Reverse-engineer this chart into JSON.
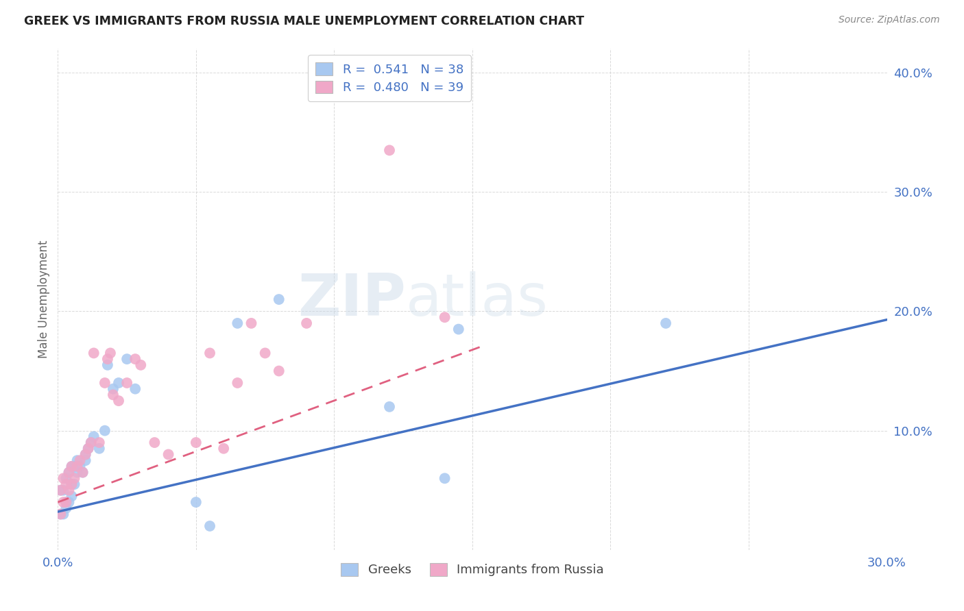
{
  "title": "GREEK VS IMMIGRANTS FROM RUSSIA MALE UNEMPLOYMENT CORRELATION CHART",
  "source": "Source: ZipAtlas.com",
  "ylabel": "Male Unemployment",
  "xlim": [
    0.0,
    0.3
  ],
  "ylim": [
    0.0,
    0.42
  ],
  "background_color": "#ffffff",
  "grid_color": "#d0d0d0",
  "watermark": "ZIPatlas",
  "legend_R_greek": "0.541",
  "legend_N_greek": "38",
  "legend_R_russia": "0.480",
  "legend_N_russia": "39",
  "greek_color": "#a8c8f0",
  "russia_color": "#f0a8c8",
  "greek_line_color": "#4472c4",
  "russia_line_color": "#e06080",
  "axis_label_color": "#4472c4",
  "legend_text_color": "#4472c4",
  "greek_x": [
    0.001,
    0.001,
    0.002,
    0.002,
    0.003,
    0.003,
    0.003,
    0.004,
    0.004,
    0.005,
    0.005,
    0.005,
    0.006,
    0.006,
    0.007,
    0.007,
    0.008,
    0.009,
    0.01,
    0.01,
    0.011,
    0.012,
    0.013,
    0.015,
    0.017,
    0.018,
    0.02,
    0.022,
    0.025,
    0.028,
    0.05,
    0.055,
    0.065,
    0.08,
    0.12,
    0.14,
    0.145,
    0.22
  ],
  "greek_y": [
    0.03,
    0.05,
    0.03,
    0.05,
    0.035,
    0.04,
    0.06,
    0.04,
    0.065,
    0.045,
    0.055,
    0.07,
    0.055,
    0.07,
    0.065,
    0.075,
    0.07,
    0.065,
    0.075,
    0.08,
    0.085,
    0.09,
    0.095,
    0.085,
    0.1,
    0.155,
    0.135,
    0.14,
    0.16,
    0.135,
    0.04,
    0.02,
    0.19,
    0.21,
    0.12,
    0.06,
    0.185,
    0.19
  ],
  "russia_x": [
    0.001,
    0.001,
    0.002,
    0.002,
    0.003,
    0.003,
    0.004,
    0.004,
    0.005,
    0.005,
    0.006,
    0.007,
    0.008,
    0.009,
    0.01,
    0.011,
    0.012,
    0.013,
    0.015,
    0.017,
    0.018,
    0.019,
    0.02,
    0.022,
    0.025,
    0.028,
    0.03,
    0.035,
    0.04,
    0.05,
    0.055,
    0.06,
    0.065,
    0.07,
    0.075,
    0.08,
    0.09,
    0.12,
    0.14
  ],
  "russia_y": [
    0.03,
    0.05,
    0.04,
    0.06,
    0.04,
    0.055,
    0.05,
    0.065,
    0.055,
    0.07,
    0.06,
    0.07,
    0.075,
    0.065,
    0.08,
    0.085,
    0.09,
    0.165,
    0.09,
    0.14,
    0.16,
    0.165,
    0.13,
    0.125,
    0.14,
    0.16,
    0.155,
    0.09,
    0.08,
    0.09,
    0.165,
    0.085,
    0.14,
    0.19,
    0.165,
    0.15,
    0.19,
    0.335,
    0.195
  ],
  "greek_line_x0": 0.0,
  "greek_line_x1": 0.3,
  "greek_line_y0": 0.032,
  "greek_line_y1": 0.193,
  "russia_line_x0": 0.0,
  "russia_line_x1": 0.155,
  "russia_line_y0": 0.04,
  "russia_line_y1": 0.172
}
